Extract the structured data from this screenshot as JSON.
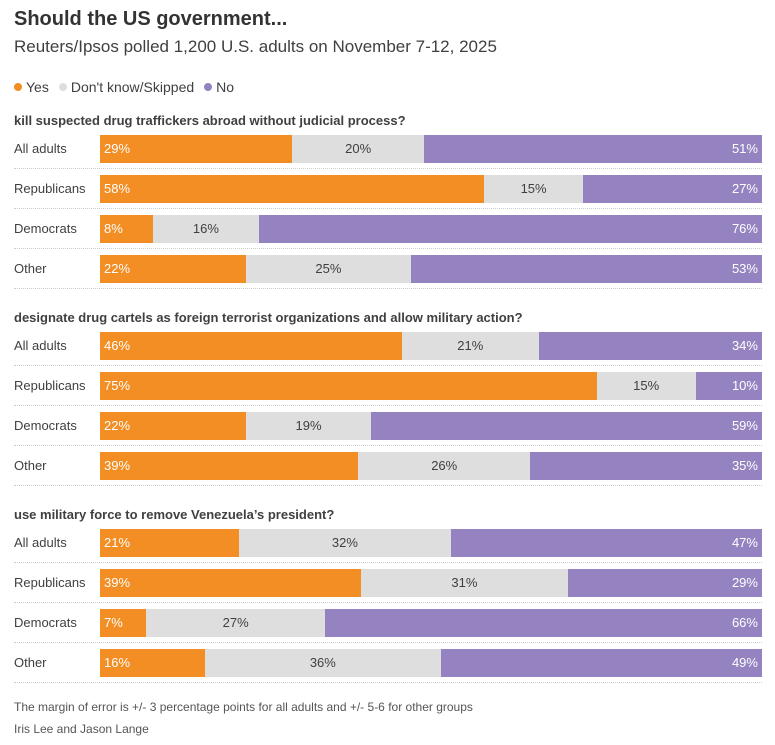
{
  "chart_data": {
    "type": "bar",
    "stacked": true,
    "orientation": "horizontal",
    "title": "Should the US government...",
    "subtitle": "Reuters/Ipsos polled 1,200 U.S. adults on November 7-12, 2025",
    "legend": [
      {
        "label": "Yes",
        "color": "#F28E24"
      },
      {
        "label": "Don't know/Skipped",
        "color": "#DEDEDE"
      },
      {
        "label": "No",
        "color": "#9483C0"
      }
    ],
    "legend_placement": "top-left",
    "groups": [
      {
        "question": "kill suspected drug traffickers abroad without judicial process?",
        "rows": [
          {
            "label": "All adults",
            "yes": 29,
            "dk": 20,
            "no": 51
          },
          {
            "label": "Republicans",
            "yes": 58,
            "dk": 15,
            "no": 27
          },
          {
            "label": "Democrats",
            "yes": 8,
            "dk": 16,
            "no": 76
          },
          {
            "label": "Other",
            "yes": 22,
            "dk": 25,
            "no": 53
          }
        ]
      },
      {
        "question": "designate drug cartels as foreign terrorist organizations and allow military action?",
        "rows": [
          {
            "label": "All adults",
            "yes": 46,
            "dk": 21,
            "no": 34
          },
          {
            "label": "Republicans",
            "yes": 75,
            "dk": 15,
            "no": 10
          },
          {
            "label": "Democrats",
            "yes": 22,
            "dk": 19,
            "no": 59
          },
          {
            "label": "Other",
            "yes": 39,
            "dk": 26,
            "no": 35
          }
        ]
      },
      {
        "question": "use military force to remove Venezuela’s president?",
        "rows": [
          {
            "label": "All adults",
            "yes": 21,
            "dk": 32,
            "no": 47
          },
          {
            "label": "Republicans",
            "yes": 39,
            "dk": 31,
            "no": 29
          },
          {
            "label": "Democrats",
            "yes": 7,
            "dk": 27,
            "no": 66
          },
          {
            "label": "Other",
            "yes": 16,
            "dk": 36,
            "no": 49
          }
        ]
      }
    ],
    "footnote": "The margin of error is +/- 3 percentage points for all adults and +/- 5-6 for other groups",
    "credit": "Iris Lee and Jason Lange"
  }
}
